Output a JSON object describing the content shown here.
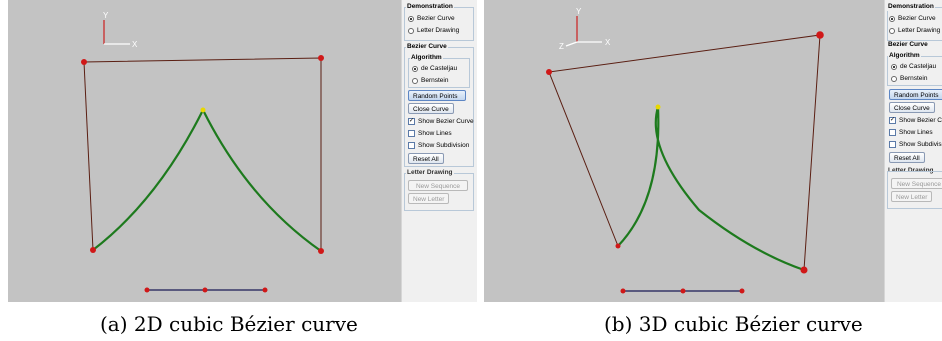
{
  "captions": {
    "a": "(a) 2D cubic Bézier curve",
    "b": "(b) 3D cubic Bézier curve"
  },
  "axes": {
    "x_label": "X",
    "y_label": "Y",
    "z_label": "Z"
  },
  "panel": {
    "demonstration_title": "Demonstration",
    "mode_options": [
      "Bezier Curve",
      "Letter Drawing"
    ],
    "selected_mode": "Bezier Curve",
    "bezier_title": "Bezier Curve",
    "algorithm_title": "Algorithm",
    "algorithm_options": [
      "de Casteljau",
      "Bernstein"
    ],
    "selected_algorithm": "de Casteljau",
    "random_points_label": "Random Points",
    "close_curve_label": "Close Curve",
    "show_bezier_label": "Show Bezier Curve",
    "show_lines_label": "Show Lines",
    "show_subdivision_label": "Show Subdivision",
    "show_bezier_checked": true,
    "show_lines_checked": false,
    "show_subdivision_checked": false,
    "reset_all_label": "Reset All",
    "letter_title": "Letter Drawing",
    "new_sequence_label": "New Sequence",
    "new_letter_label": "New Letter"
  },
  "panel_b_cropped": {
    "show_bezier_label": "Show Bezier Cur",
    "show_subdivision_label": "Show Subdivisio"
  },
  "colors": {
    "viewport_bg": "#c3c3c3",
    "control_polygon": "#5a1e12",
    "curve": "#1d7a1d",
    "control_point": "#d01818",
    "highlight_point": "#e8d800",
    "axis_x": "#ffffff",
    "axis_y": "#cc2020"
  }
}
